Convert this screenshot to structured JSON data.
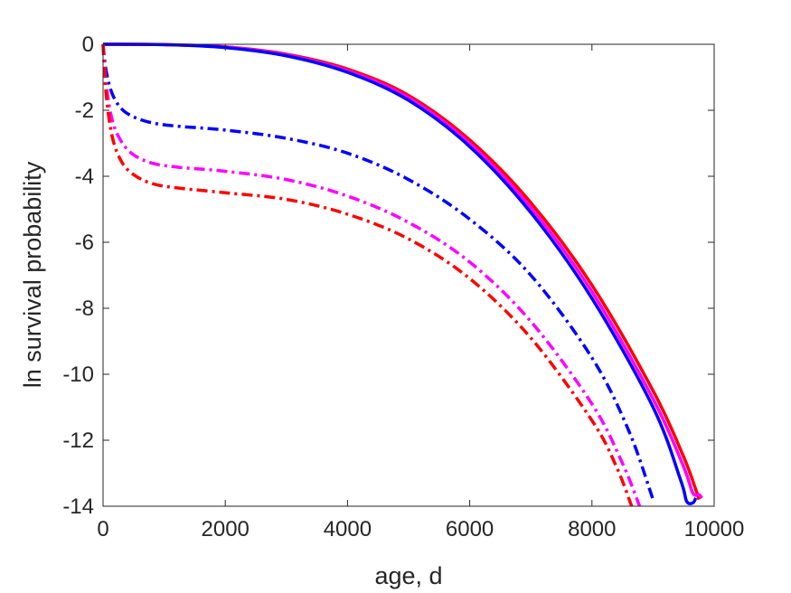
{
  "chart_data": {
    "type": "line",
    "title": "",
    "xlabel": "age, d",
    "ylabel": "ln survival probability",
    "xlim": [
      0,
      10000
    ],
    "ylim": [
      -14,
      0
    ],
    "xticks": [
      0,
      2000,
      4000,
      6000,
      8000,
      10000
    ],
    "xtick_labels": [
      "0",
      "2000",
      "4000",
      "6000",
      "8000",
      "10000"
    ],
    "yticks": [
      0,
      -2,
      -4,
      -6,
      -8,
      -10,
      -12,
      -14
    ],
    "ytick_labels": [
      "0",
      "-2",
      "-4",
      "-6",
      "-8",
      "-10",
      "-12",
      "-14"
    ],
    "grid": false,
    "legend": "none",
    "series": [
      {
        "color": "#ff0000",
        "style": "solid",
        "x": [
          0,
          1000,
          2000,
          3000,
          4000,
          5000,
          6000,
          7000,
          8000,
          9000,
          9500,
          9700,
          9750
        ],
        "y": [
          0,
          -0.01,
          -0.08,
          -0.3,
          -0.75,
          -1.55,
          -2.9,
          -4.8,
          -7.3,
          -10.5,
          -12.5,
          -13.5,
          -13.8
        ]
      },
      {
        "color": "#ff00ff",
        "style": "solid",
        "x": [
          0,
          1000,
          2000,
          3000,
          4000,
          5000,
          6000,
          7000,
          8000,
          9000,
          9500,
          9650,
          9750,
          9800
        ],
        "y": [
          0,
          -0.01,
          -0.08,
          -0.32,
          -0.8,
          -1.62,
          -3.0,
          -4.95,
          -7.5,
          -10.75,
          -12.8,
          -13.6,
          -13.65,
          -13.75
        ]
      },
      {
        "color": "#0000ff",
        "style": "solid",
        "x": [
          0,
          1000,
          2000,
          3000,
          4000,
          5000,
          6000,
          7000,
          8000,
          9000,
          9450,
          9550,
          9650,
          9700
        ],
        "y": [
          0,
          -0.01,
          -0.1,
          -0.35,
          -0.85,
          -1.7,
          -3.1,
          -5.1,
          -7.7,
          -11.0,
          -13.2,
          -13.85,
          -13.9,
          -13.75
        ]
      },
      {
        "color": "#0000ff",
        "style": "dashdot",
        "x": [
          0,
          50,
          150,
          300,
          500,
          800,
          1200,
          2000,
          3000,
          4000,
          5000,
          6000,
          7000,
          8000,
          8600,
          9000
        ],
        "y": [
          0,
          -0.8,
          -1.5,
          -1.95,
          -2.2,
          -2.38,
          -2.48,
          -2.6,
          -2.85,
          -3.3,
          -4.1,
          -5.3,
          -7.0,
          -9.5,
          -11.7,
          -13.8
        ]
      },
      {
        "color": "#ff00ff",
        "style": "dashdot",
        "x": [
          0,
          50,
          150,
          300,
          500,
          800,
          1200,
          2000,
          3000,
          4000,
          5000,
          6000,
          7000,
          8000,
          8500,
          8780
        ],
        "y": [
          0,
          -1.2,
          -2.3,
          -2.95,
          -3.35,
          -3.6,
          -3.72,
          -3.85,
          -4.1,
          -4.6,
          -5.4,
          -6.6,
          -8.4,
          -10.9,
          -12.7,
          -14.0
        ]
      },
      {
        "color": "#ff0000",
        "style": "dashdot",
        "x": [
          0,
          50,
          150,
          300,
          500,
          800,
          1200,
          2000,
          3000,
          4000,
          5000,
          6000,
          7000,
          8000,
          8400,
          8650
        ],
        "y": [
          0,
          -1.5,
          -2.8,
          -3.55,
          -3.95,
          -4.22,
          -4.35,
          -4.5,
          -4.7,
          -5.15,
          -5.9,
          -7.1,
          -8.9,
          -11.4,
          -12.8,
          -14.0
        ]
      }
    ]
  }
}
